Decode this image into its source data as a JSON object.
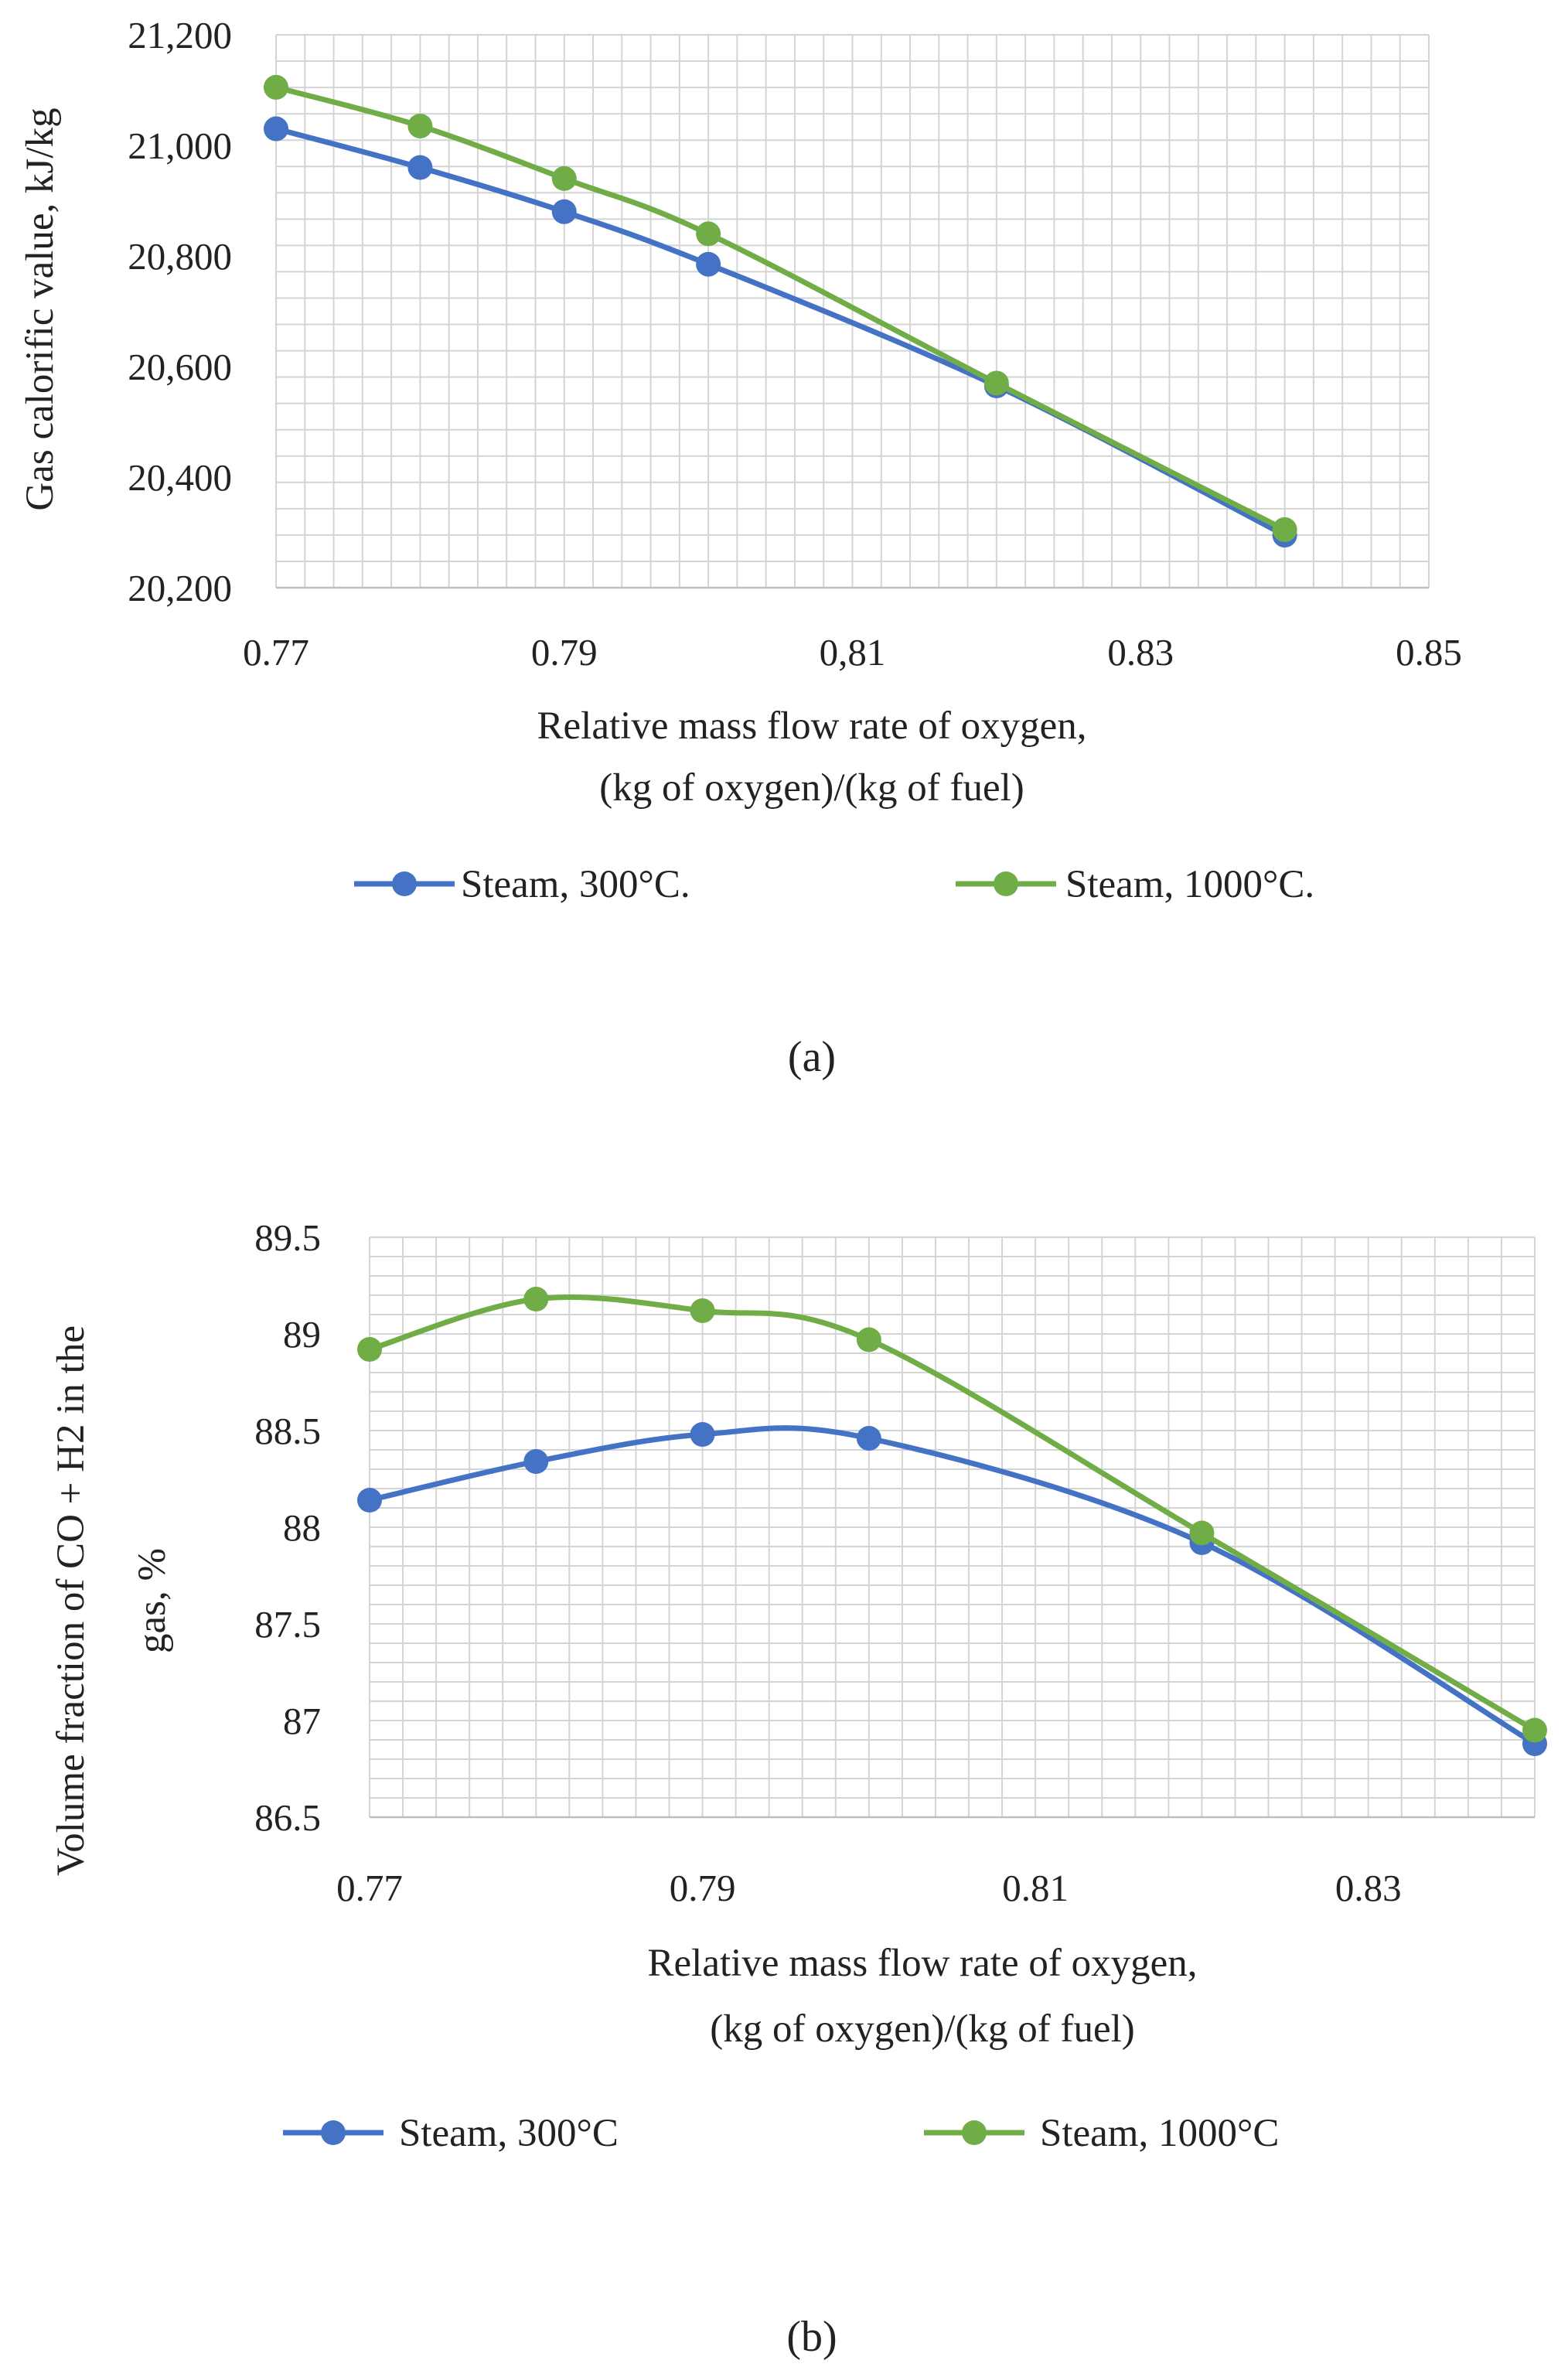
{
  "chart_data": [
    {
      "type": "line",
      "caption": "(a)",
      "xlabel": [
        "Relative mass flow rate of oxygen,",
        "(kg of oxygen)/(kg of fuel)"
      ],
      "ylabel": "Gas calorific value, kJ/kg",
      "xlim": [
        0.77,
        0.85
      ],
      "ylim": [
        20200,
        21200
      ],
      "x_ticks": [
        0.77,
        0.79,
        0.81,
        0.83,
        0.85
      ],
      "x_tick_labels": [
        "0.77",
        "0.79",
        "0,81",
        "0.83",
        "0.85"
      ],
      "y_ticks": [
        20200,
        20400,
        20600,
        20800,
        21000,
        21200
      ],
      "y_tick_labels": [
        "20,200",
        "20,400",
        "20,600",
        "20,800",
        "21,000",
        "21,200"
      ],
      "grid": true,
      "legend_position": "bottom",
      "series": [
        {
          "name": "Steam, 300°C.",
          "color": "#4472c4",
          "x": [
            0.77,
            0.78,
            0.79,
            0.8,
            0.82,
            0.84
          ],
          "y": [
            21030,
            20960,
            20880,
            20785,
            20565,
            20295
          ]
        },
        {
          "name": "Steam, 1000°C.",
          "color": "#70ad47",
          "x": [
            0.77,
            0.78,
            0.79,
            0.8,
            0.82,
            0.84
          ],
          "y": [
            21105,
            21035,
            20940,
            20840,
            20570,
            20305
          ]
        }
      ]
    },
    {
      "type": "line",
      "caption": "(b)",
      "xlabel": [
        "Relative mass flow rate of oxygen,",
        "(kg of oxygen)/(kg of fuel)"
      ],
      "ylabel": [
        "Volume fraction of CO + H2 in the",
        "gas, %"
      ],
      "xlim": [
        0.77,
        0.84
      ],
      "ylim": [
        86.5,
        89.5
      ],
      "x_ticks": [
        0.77,
        0.79,
        0.81,
        0.83
      ],
      "x_tick_labels": [
        "0.77",
        "0.79",
        "0.81",
        "0.83"
      ],
      "y_ticks": [
        86.5,
        87,
        87.5,
        88,
        88.5,
        89,
        89.5
      ],
      "y_tick_labels": [
        "86.5",
        "87",
        "87.5",
        "88",
        "88.5",
        "89",
        "89.5"
      ],
      "grid": true,
      "legend_position": "bottom",
      "series": [
        {
          "name": "Steam, 300°C",
          "color": "#4472c4",
          "x": [
            0.77,
            0.78,
            0.79,
            0.8,
            0.82,
            0.84
          ],
          "y": [
            88.14,
            88.34,
            88.48,
            88.46,
            87.92,
            86.88
          ]
        },
        {
          "name": "Steam, 1000°C",
          "color": "#70ad47",
          "x": [
            0.77,
            0.78,
            0.79,
            0.8,
            0.82,
            0.84
          ],
          "y": [
            88.92,
            89.18,
            89.12,
            88.97,
            87.97,
            86.95
          ]
        }
      ]
    }
  ]
}
